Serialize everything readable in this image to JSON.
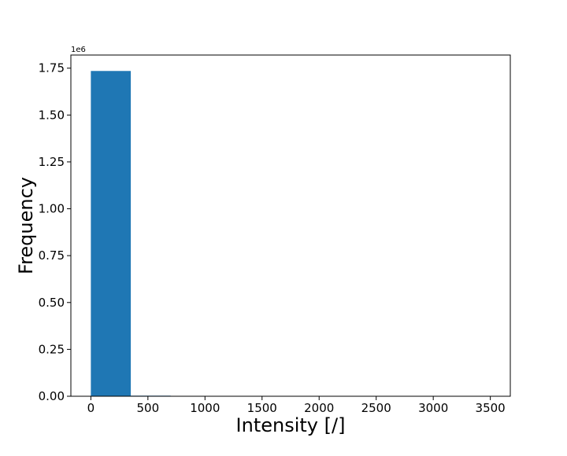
{
  "chart_data": {
    "type": "bar",
    "title": "",
    "xlabel": "Intensity [/]",
    "ylabel": "Frequency",
    "y_offset_label": "1e6",
    "x_ticks": [
      0,
      500,
      1000,
      1500,
      2000,
      2500,
      3000,
      3500
    ],
    "x_tick_labels": [
      "0",
      "500",
      "1000",
      "1500",
      "2000",
      "2500",
      "3000",
      "3500"
    ],
    "y_ticks": [
      0,
      0.25,
      0.5,
      0.75,
      1.0,
      1.25,
      1.5,
      1.75
    ],
    "y_tick_labels": [
      "0.00",
      "0.25",
      "0.50",
      "0.75",
      "1.00",
      "1.25",
      "1.50",
      "1.75"
    ],
    "xlim": [
      -175,
      3675
    ],
    "ylim": [
      0,
      1.82
    ],
    "bins": [
      {
        "x0": 0,
        "x1": 350,
        "value": 1.735
      },
      {
        "x0": 350,
        "x1": 700,
        "value": 0.003
      },
      {
        "x0": 700,
        "x1": 1050,
        "value": 0.0004
      },
      {
        "x0": 1050,
        "x1": 1400,
        "value": 0.0001
      },
      {
        "x0": 1400,
        "x1": 1750,
        "value": 0.0
      },
      {
        "x0": 1750,
        "x1": 2100,
        "value": 0.0
      },
      {
        "x0": 2100,
        "x1": 2450,
        "value": 0.0
      },
      {
        "x0": 2450,
        "x1": 2800,
        "value": 0.0
      },
      {
        "x0": 2800,
        "x1": 3150,
        "value": 0.0
      },
      {
        "x0": 3150,
        "x1": 3500,
        "value": 0.0
      }
    ],
    "bar_color": "#1f77b4",
    "grid": false,
    "legend": "none"
  }
}
